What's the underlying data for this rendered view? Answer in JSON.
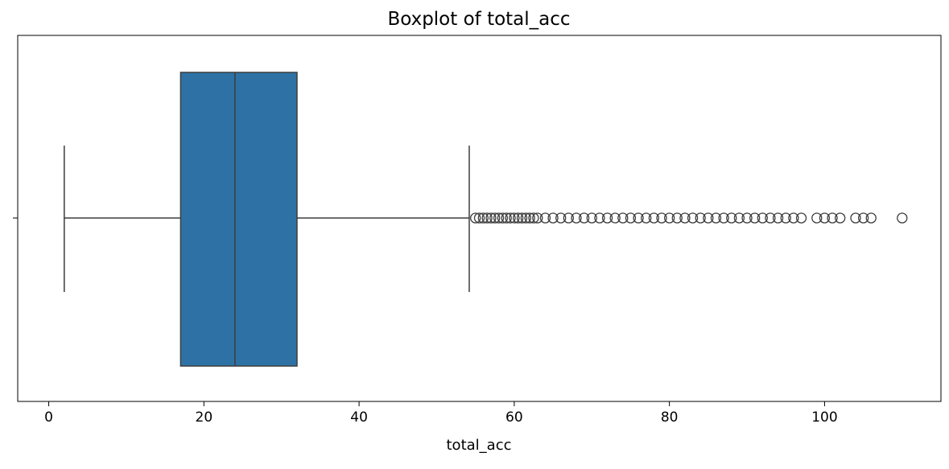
{
  "chart_data": {
    "type": "boxplot",
    "title": "Boxplot of total_acc",
    "xlabel": "total_acc",
    "ylabel": "",
    "xlim": [
      -4,
      115
    ],
    "xticks": [
      0,
      20,
      40,
      60,
      80,
      100
    ],
    "box_color": "#2e72a5",
    "line_color": "#3d3d3d",
    "stats": {
      "whisker_low": 2,
      "q1": 17,
      "median": 24,
      "q3": 32,
      "whisker_high": 54.2
    },
    "outliers": [
      55,
      55.5,
      56,
      56.5,
      57,
      57.5,
      58,
      58.5,
      59,
      59.5,
      60,
      60.5,
      61,
      61.5,
      62,
      62.5,
      63,
      64,
      65,
      66,
      67,
      68,
      69,
      70,
      71,
      72,
      73,
      74,
      75,
      76,
      77,
      78,
      79,
      80,
      81,
      82,
      83,
      84,
      85,
      86,
      87,
      88,
      89,
      90,
      91,
      92,
      93,
      94,
      95,
      96,
      97,
      99,
      100,
      101,
      102,
      104,
      105,
      106,
      110
    ]
  }
}
